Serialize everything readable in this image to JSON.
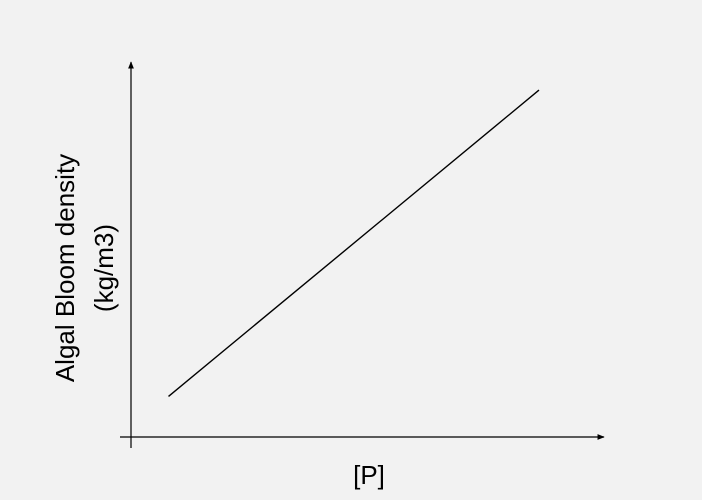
{
  "chart_data": {
    "type": "line",
    "title": "",
    "xlabel": "[P]",
    "ylabel_lines": [
      "Algal Bloom density",
      "(kg/m3)"
    ],
    "xlim": [
      0,
      1
    ],
    "ylim": [
      0,
      1
    ],
    "series": [
      {
        "x": [
          0.08,
          0.87
        ],
        "y": [
          0.11,
          0.94
        ]
      }
    ],
    "grid": false,
    "legend": "none",
    "tick_labels": false
  },
  "colors": {
    "background": "#f2f2f2",
    "line": "#000000",
    "axis": "#000000"
  }
}
